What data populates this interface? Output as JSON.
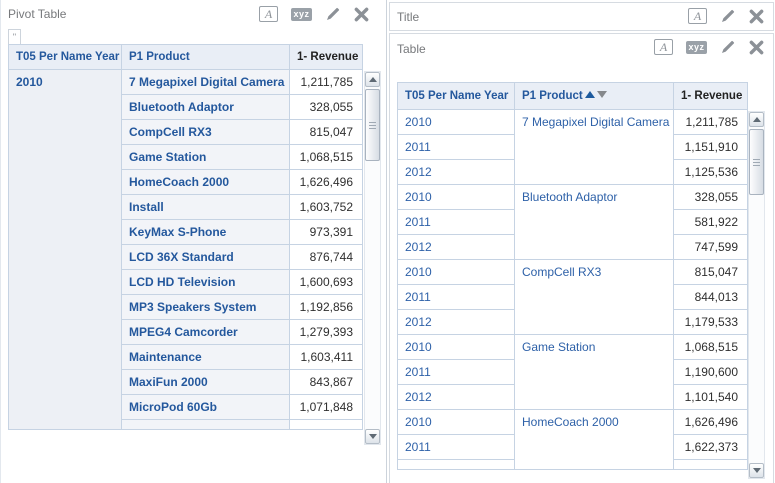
{
  "icon_labels": {
    "format": "A",
    "xyz": "xyz"
  },
  "colors": {
    "accent_blue": "#24589d",
    "link_blue": "#2e61a8",
    "value_text": "#2f2f2f",
    "header_bg": "#e9eef6",
    "table_border": "#c6d3e3",
    "icon_gray": "#8c9197"
  },
  "left_panel": {
    "title": "Pivot Table",
    "corner_tab_label": "\"",
    "table": {
      "columns": [
        "T05 Per Name Year",
        "P1 Product",
        "1- Revenue"
      ],
      "year": "2010",
      "rows": [
        {
          "product": "7 Megapixel Digital Camera",
          "revenue": "1,211,785"
        },
        {
          "product": "Bluetooth Adaptor",
          "revenue": "328,055"
        },
        {
          "product": "CompCell RX3",
          "revenue": "815,047"
        },
        {
          "product": "Game Station",
          "revenue": "1,068,515"
        },
        {
          "product": "HomeCoach 2000",
          "revenue": "1,626,496"
        },
        {
          "product": "Install",
          "revenue": "1,603,752"
        },
        {
          "product": "KeyMax S-Phone",
          "revenue": "973,391"
        },
        {
          "product": "LCD 36X Standard",
          "revenue": "876,744"
        },
        {
          "product": "LCD HD Television",
          "revenue": "1,600,693"
        },
        {
          "product": "MP3 Speakers System",
          "revenue": "1,192,856"
        },
        {
          "product": "MPEG4 Camcorder",
          "revenue": "1,279,393"
        },
        {
          "product": "Maintenance",
          "revenue": "1,603,411"
        },
        {
          "product": "MaxiFun 2000",
          "revenue": "843,867"
        },
        {
          "product": "MicroPod 60Gb",
          "revenue": "1,071,848"
        }
      ]
    }
  },
  "right_panel": {
    "title_view": {
      "title": "Title"
    },
    "table_view": {
      "title": "Table",
      "columns": [
        "T05 Per Name Year",
        "P1 Product",
        "1- Revenue"
      ],
      "sort": {
        "column": "P1 Product",
        "ascending_active": true
      },
      "groups": [
        {
          "product": "7 Megapixel Digital Camera",
          "rows": [
            [
              "2010",
              "1,211,785"
            ],
            [
              "2011",
              "1,151,910"
            ],
            [
              "2012",
              "1,125,536"
            ]
          ]
        },
        {
          "product": "Bluetooth Adaptor",
          "rows": [
            [
              "2010",
              "328,055"
            ],
            [
              "2011",
              "581,922"
            ],
            [
              "2012",
              "747,599"
            ]
          ]
        },
        {
          "product": "CompCell RX3",
          "rows": [
            [
              "2010",
              "815,047"
            ],
            [
              "2011",
              "844,013"
            ],
            [
              "2012",
              "1,179,533"
            ]
          ]
        },
        {
          "product": "Game Station",
          "rows": [
            [
              "2010",
              "1,068,515"
            ],
            [
              "2011",
              "1,190,600"
            ],
            [
              "2012",
              "1,101,540"
            ]
          ]
        },
        {
          "product": "HomeCoach 2000",
          "rows": [
            [
              "2010",
              "1,626,496"
            ],
            [
              "2011",
              "1,622,373"
            ]
          ]
        }
      ]
    }
  }
}
